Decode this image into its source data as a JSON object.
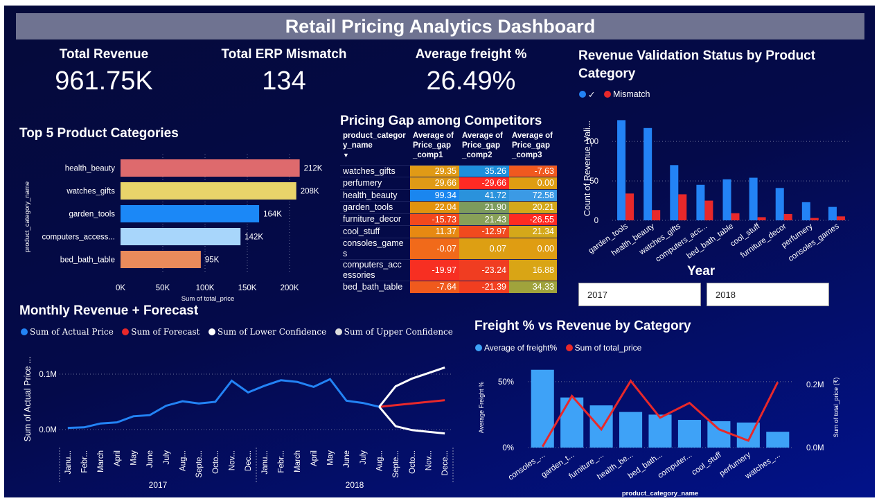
{
  "title": "Retail Pricing Analytics Dashboard",
  "kpis": [
    {
      "label": "Total Revenue",
      "value": "961.75K"
    },
    {
      "label": "Total ERP Mismatch",
      "value": "134"
    },
    {
      "label": "Average freight %",
      "value": "26.49%"
    }
  ],
  "colors": {
    "background": "#040a4a",
    "blue": "#2383f5",
    "red": "#e8282a",
    "white": "#ffffff"
  },
  "top5": {
    "title": "Top 5 Product Categories",
    "xlabel": "Sum of total_price",
    "ylabel": "product_category_name",
    "x_ticks": [
      "0K",
      "50K",
      "100K",
      "150K",
      "200K"
    ],
    "chart_data": {
      "type": "bar",
      "orientation": "horizontal",
      "categories": [
        "health_beauty",
        "watches_gifts",
        "garden_tools",
        "computers_access...",
        "bed_bath_table"
      ],
      "values": [
        212,
        208,
        164,
        142,
        95
      ],
      "value_labels": [
        "212K",
        "208K",
        "164K",
        "142K",
        "95K"
      ],
      "unit": "K",
      "xlim": [
        0,
        200
      ],
      "bar_colors": [
        "#de6a6d",
        "#e8d36a",
        "#1b88f7",
        "#a8d6fb",
        "#ea8b5b"
      ]
    }
  },
  "gap_table": {
    "title": "Pricing Gap among Competitors",
    "headers": [
      "product_categor y_name",
      "Average of Price_gap _comp1",
      "Average of Price_gap _comp2",
      "Average of Price_gap _comp3"
    ],
    "sort_arrow": "▼",
    "rows": [
      {
        "cat": "watches_gifts",
        "v": [
          "29.35",
          "35.26",
          "-7.63"
        ],
        "c": [
          "#e09a16",
          "#1e8fdc",
          "#f0591f"
        ]
      },
      {
        "cat": "perfumery",
        "v": [
          "29.66",
          "-29.66",
          "0.00"
        ],
        "c": [
          "#e09a16",
          "#ff2a24",
          "#df9d12"
        ]
      },
      {
        "cat": "health_beauty",
        "v": [
          "99.34",
          "41.72",
          "72.58"
        ],
        "c": [
          "#1a86ef",
          "#2a92dc",
          "#3b9ae5"
        ]
      },
      {
        "cat": "garden_tools",
        "v": [
          "22.04",
          "21.90",
          "20.21"
        ],
        "c": [
          "#e1930f",
          "#7d9b5d",
          "#d4a81a"
        ]
      },
      {
        "cat": "furniture_decor",
        "v": [
          "-15.73",
          "21.43",
          "-26.55"
        ],
        "c": [
          "#f3481d",
          "#88a058",
          "#ff2a22"
        ]
      },
      {
        "cat": "cool_stuff",
        "v": [
          "11.37",
          "-12.97",
          "21.34"
        ],
        "c": [
          "#e78912",
          "#f14a1e",
          "#d4a81a"
        ]
      },
      {
        "cat": "consoles_game s",
        "v": [
          "-0.07",
          "0.07",
          "0.00"
        ],
        "c": [
          "#f16a1a",
          "#dd9f13",
          "#df9d12"
        ]
      },
      {
        "cat": "computers_acc essories",
        "v": [
          "-19.97",
          "-23.24",
          "16.88"
        ],
        "c": [
          "#f72f22",
          "#f03d21",
          "#d9a515"
        ]
      },
      {
        "cat": "bed_bath_table",
        "v": [
          "-7.64",
          "-21.39",
          "34.33"
        ],
        "c": [
          "#f05a1d",
          "#f23e20",
          "#a0a33c"
        ]
      }
    ]
  },
  "validation": {
    "title": "Revenue Validation Status by Product Category",
    "legend": [
      {
        "name": "✓",
        "color": "#2383f5"
      },
      {
        "name": "Mismatch",
        "color": "#e8282a"
      }
    ],
    "ylabel": "Count of Revenue_Vali...",
    "y_ticks": [
      "0",
      "50",
      "100"
    ],
    "chart_data": {
      "type": "bar",
      "categories": [
        "garden_tools",
        "health_beauty",
        "watches_gifts",
        "computers_acc...",
        "bed_bath_table",
        "cool_stuff",
        "furniture_decor",
        "perfumery",
        "consoles_games"
      ],
      "series": [
        {
          "name": "✓",
          "values": [
            127,
            117,
            70,
            45,
            52,
            54,
            41,
            23,
            17
          ]
        },
        {
          "name": "Mismatch",
          "values": [
            34,
            13,
            33,
            25,
            9,
            4,
            8,
            3,
            5
          ]
        }
      ],
      "ylim": [
        0,
        130
      ]
    }
  },
  "year_slicer": {
    "title": "Year",
    "options": [
      "2017",
      "2018"
    ]
  },
  "monthly": {
    "title": "Monthly Revenue + Forecast",
    "legend": [
      {
        "name": "Sum of Actual Price",
        "color": "#2383f5"
      },
      {
        "name": "Sum of Forecast",
        "color": "#e8282a"
      },
      {
        "name": "Sum of Lower Confidence",
        "color": "#ffffff"
      },
      {
        "name": "Sum of Upper Confidence",
        "color": "#dddddd"
      }
    ],
    "ylabel": "Sum of Actual Price ...",
    "y_ticks": [
      "0.0M",
      "0.1M"
    ],
    "months": [
      "Janu...",
      "Febr...",
      "March",
      "April",
      "May",
      "June",
      "July",
      "Aug...",
      "Septe...",
      "Octo...",
      "Nov...",
      "Dec...",
      "Janu...",
      "Febr...",
      "March",
      "April",
      "May",
      "June",
      "July",
      "Aug...",
      "Septe...",
      "Octo...",
      "Nov...",
      "Dece..."
    ],
    "years": [
      "2017",
      "2018"
    ],
    "chart_data": {
      "type": "line",
      "x_index": [
        0,
        1,
        2,
        3,
        4,
        5,
        6,
        7,
        8,
        9,
        10,
        11,
        12,
        13,
        14,
        15,
        16,
        17,
        18,
        19,
        20,
        21,
        22,
        23
      ],
      "series": [
        {
          "name": "Sum of Actual Price",
          "values": [
            0.003,
            0.004,
            0.011,
            0.013,
            0.024,
            0.026,
            0.043,
            0.051,
            0.047,
            0.05,
            0.088,
            0.067,
            0.079,
            0.089,
            0.086,
            0.077,
            0.091,
            0.052,
            0.048,
            0.041,
            null,
            null,
            null,
            null
          ]
        },
        {
          "name": "Sum of Forecast",
          "values": [
            null,
            null,
            null,
            null,
            null,
            null,
            null,
            null,
            null,
            null,
            null,
            null,
            null,
            null,
            null,
            null,
            null,
            null,
            null,
            0.041,
            0.044,
            0.047,
            0.05,
            0.053
          ]
        },
        {
          "name": "Sum of Lower Confidence",
          "values": [
            null,
            null,
            null,
            null,
            null,
            null,
            null,
            null,
            null,
            null,
            null,
            null,
            null,
            null,
            null,
            null,
            null,
            null,
            null,
            0.041,
            0.006,
            -0.001,
            -0.004,
            -0.007
          ]
        },
        {
          "name": "Sum of Upper Confidence",
          "values": [
            null,
            null,
            null,
            null,
            null,
            null,
            null,
            null,
            null,
            null,
            null,
            null,
            null,
            null,
            null,
            null,
            null,
            null,
            null,
            0.041,
            0.078,
            0.092,
            0.102,
            0.112
          ]
        }
      ],
      "ylim": [
        -0.02,
        0.13
      ]
    }
  },
  "freight": {
    "title": "Freight % vs Revenue by Category",
    "legend": [
      {
        "name": "Average of freight%",
        "color": "#3ea2f7"
      },
      {
        "name": "Sum of total_price",
        "color": "#e8282a"
      }
    ],
    "ylabel_left": "Average Freight %",
    "ylabel_right": "Sum of total_price (₹)",
    "xlabel": "product_category_name",
    "y_left_ticks": [
      "0%",
      "50%"
    ],
    "y_right_ticks": [
      "0.0M",
      "0.2M"
    ],
    "chart_data": {
      "type": "bar",
      "categories": [
        "consoles_...",
        "garden_t...",
        "furniture_...",
        "health_be...",
        "bed_bath...",
        "computer...",
        "cool_stuff",
        "perfumery",
        "watches_..."
      ],
      "series": [
        {
          "name": "Average of freight%",
          "values": [
            59,
            38,
            32,
            27,
            25,
            21,
            20,
            19,
            12
          ]
        },
        {
          "name": "Sum of total_price",
          "values": [
            0.003,
            0.164,
            0.058,
            0.212,
            0.095,
            0.142,
            0.058,
            0.022,
            0.208
          ]
        }
      ],
      "ylim_left": [
        0,
        62
      ],
      "ylim_right": [
        0,
        0.26
      ]
    }
  }
}
